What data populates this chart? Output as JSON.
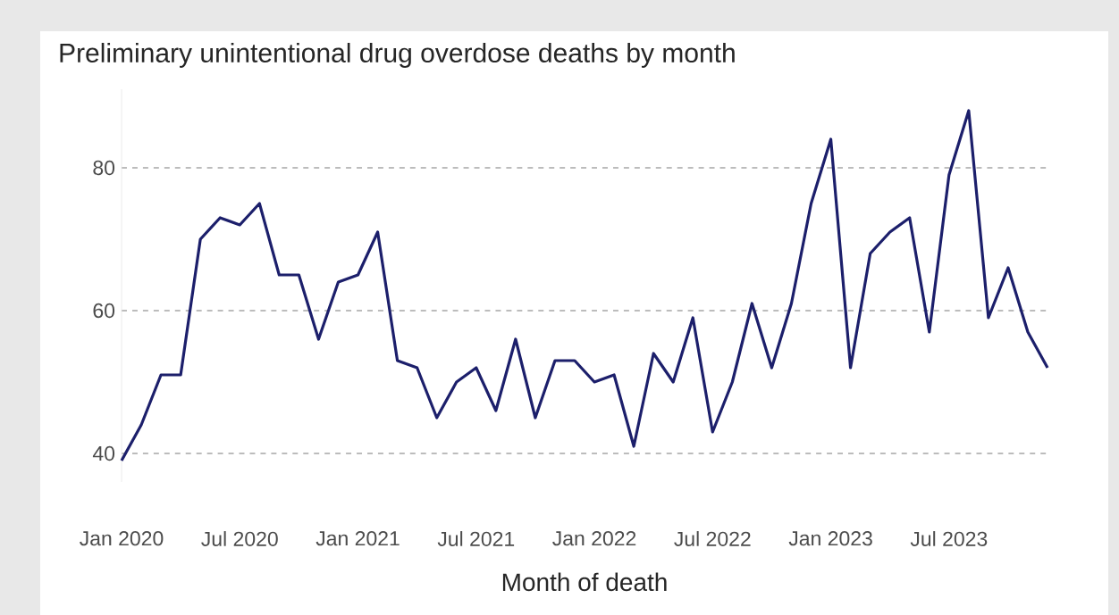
{
  "chart_data": {
    "type": "line",
    "title": "Preliminary unintentional drug overdose deaths by month",
    "xlabel": "Month of death",
    "x": [
      "2020-01",
      "2020-02",
      "2020-03",
      "2020-04",
      "2020-05",
      "2020-06",
      "2020-07",
      "2020-08",
      "2020-09",
      "2020-10",
      "2020-11",
      "2020-12",
      "2021-01",
      "2021-02",
      "2021-03",
      "2021-04",
      "2021-05",
      "2021-06",
      "2021-07",
      "2021-08",
      "2021-09",
      "2021-10",
      "2021-11",
      "2021-12",
      "2022-01",
      "2022-02",
      "2022-03",
      "2022-04",
      "2022-05",
      "2022-06",
      "2022-07",
      "2022-08",
      "2022-09",
      "2022-10",
      "2022-11",
      "2022-12",
      "2023-01",
      "2023-02",
      "2023-03",
      "2023-04",
      "2023-05",
      "2023-06",
      "2023-07",
      "2023-08",
      "2023-09",
      "2023-10",
      "2023-11",
      "2023-12"
    ],
    "values": [
      39,
      44,
      51,
      51,
      70,
      73,
      72,
      75,
      65,
      65,
      56,
      64,
      65,
      71,
      53,
      52,
      45,
      50,
      52,
      46,
      56,
      45,
      53,
      53,
      50,
      51,
      41,
      54,
      50,
      59,
      43,
      50,
      61,
      52,
      61,
      75,
      84,
      52,
      68,
      71,
      73,
      57,
      79,
      88,
      59,
      66,
      57,
      52
    ],
    "color": "#1c1f6b",
    "xlim": [
      "2020-01",
      "2023-12"
    ],
    "xticks": [
      {
        "value": "2020-01",
        "label": "Jan 2020"
      },
      {
        "value": "2020-07",
        "label": "Jul 2020"
      },
      {
        "value": "2021-01",
        "label": "Jan 2021"
      },
      {
        "value": "2021-07",
        "label": "Jul 2021"
      },
      {
        "value": "2022-01",
        "label": "Jan 2022"
      },
      {
        "value": "2022-07",
        "label": "Jul 2022"
      },
      {
        "value": "2023-01",
        "label": "Jan 2023"
      },
      {
        "value": "2023-07",
        "label": "Jul 2023"
      }
    ],
    "ylim": [
      36,
      91
    ],
    "yticks": [
      40,
      60,
      80
    ],
    "grid": "y",
    "marker": "none",
    "line_style": "solid"
  }
}
